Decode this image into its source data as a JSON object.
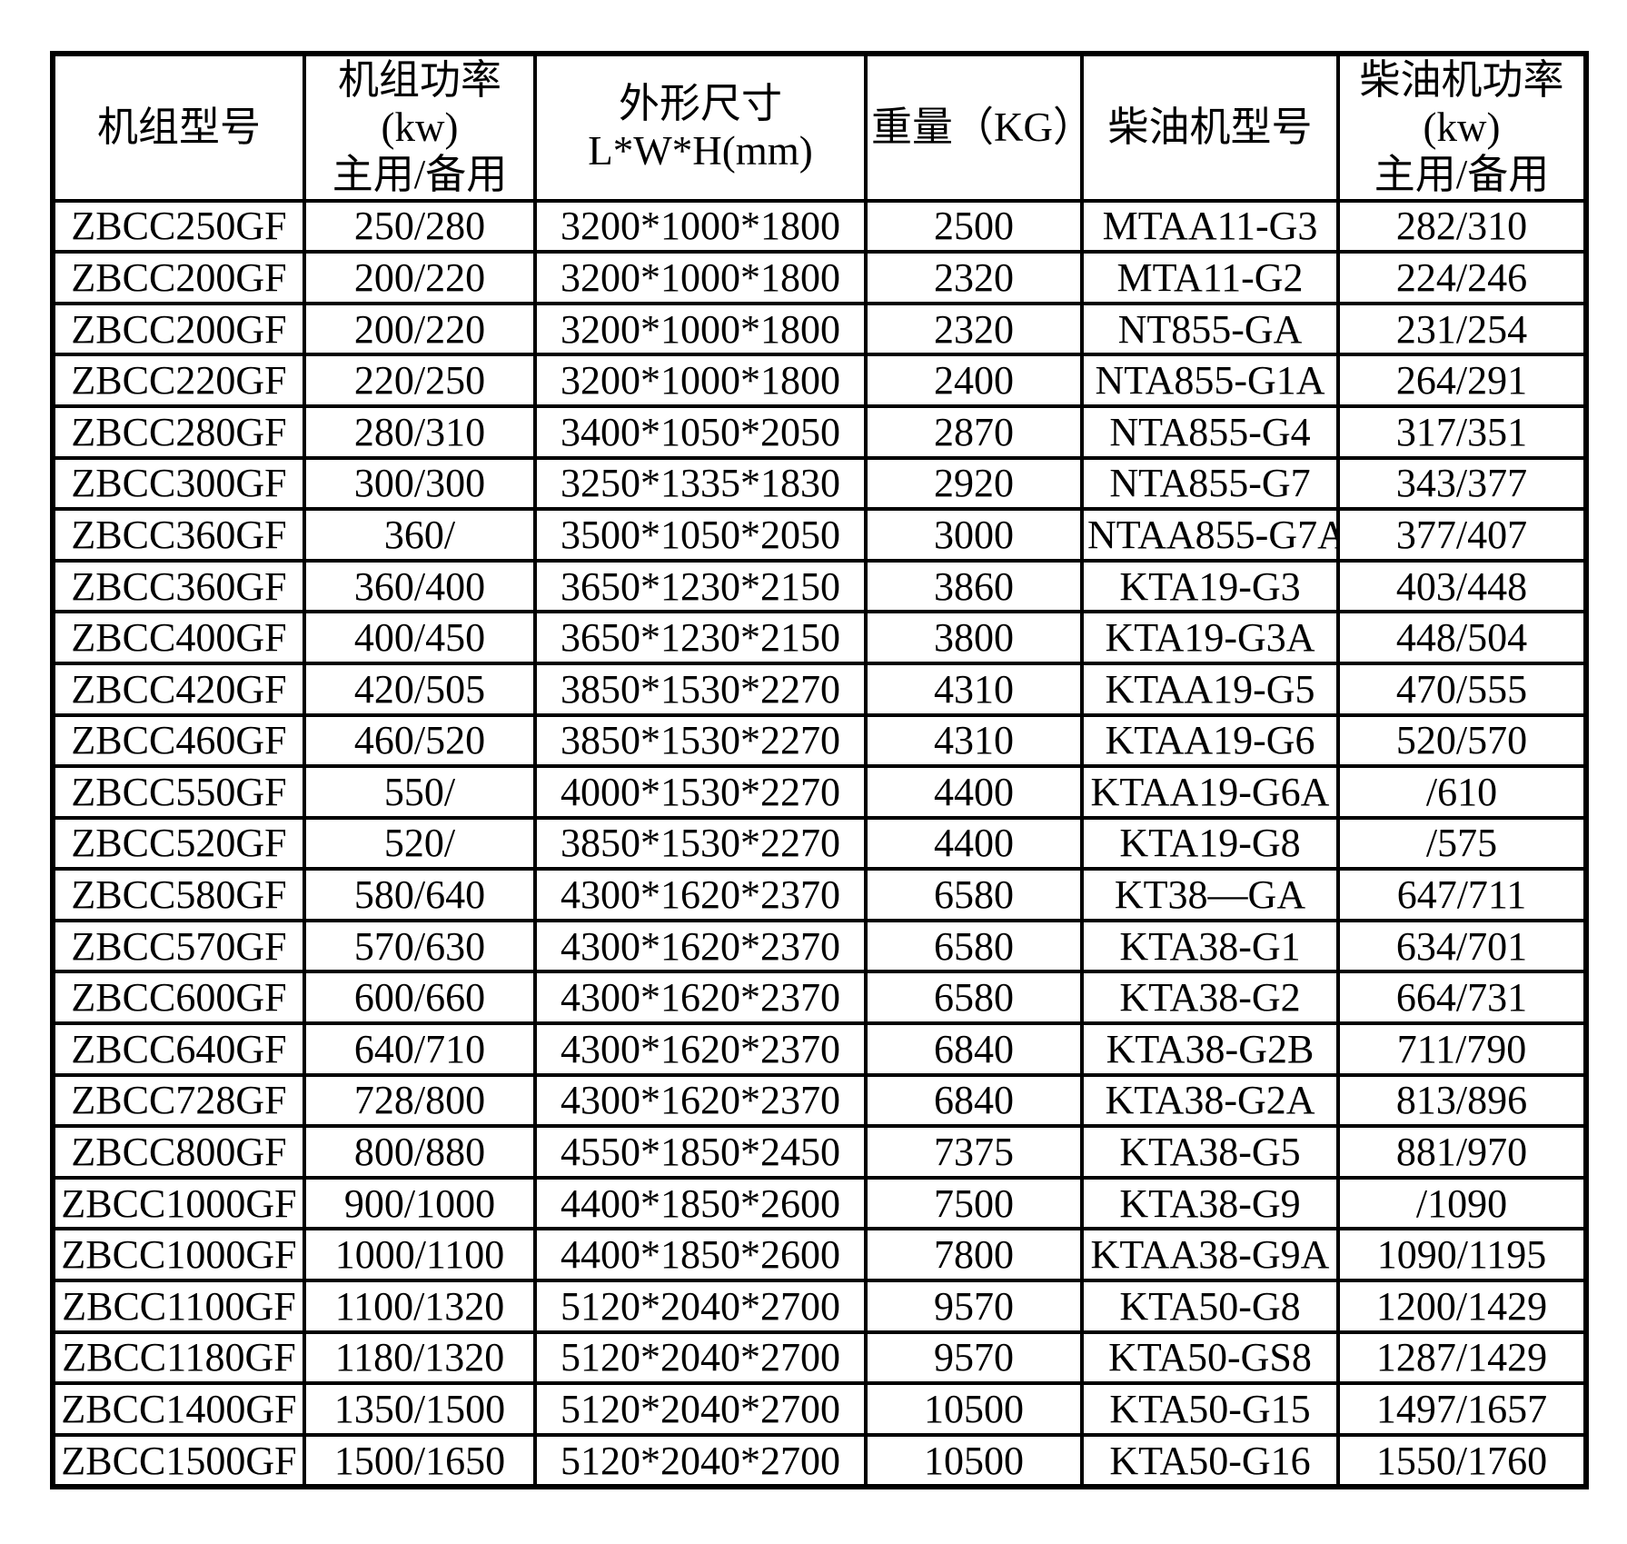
{
  "meta": {
    "background_color": "#ffffff",
    "border_color": "#000000",
    "text_color": "#000000"
  },
  "table": {
    "column_keys": [
      "unit_model",
      "unit_power",
      "dimensions",
      "weight",
      "engine_model",
      "engine_power"
    ],
    "headers": [
      {
        "lines": [
          "机组型号"
        ]
      },
      {
        "lines": [
          "机组功率",
          "(kw)",
          "主用/备用"
        ]
      },
      {
        "lines": [
          "外形尺寸",
          "L*W*H(mm)"
        ]
      },
      {
        "lines": [
          "重量（KG）"
        ]
      },
      {
        "lines": [
          "柴油机型号"
        ]
      },
      {
        "lines": [
          "柴油机功率",
          "(kw)",
          "主用/备用"
        ]
      }
    ],
    "rows": [
      [
        "ZBCC250GF",
        "250/280",
        "3200*1000*1800",
        "2500",
        "MTAA11-G3",
        "282/310"
      ],
      [
        "ZBCC200GF",
        "200/220",
        "3200*1000*1800",
        "2320",
        "MTA11-G2",
        "224/246"
      ],
      [
        "ZBCC200GF",
        "200/220",
        "3200*1000*1800",
        "2320",
        "NT855-GA",
        "231/254"
      ],
      [
        "ZBCC220GF",
        "220/250",
        "3200*1000*1800",
        "2400",
        "NTA855-G1A",
        "264/291"
      ],
      [
        "ZBCC280GF",
        "280/310",
        "3400*1050*2050",
        "2870",
        "NTA855-G4",
        "317/351"
      ],
      [
        "ZBCC300GF",
        "300/300",
        "3250*1335*1830",
        "2920",
        "NTA855-G7",
        "343/377"
      ],
      [
        "ZBCC360GF",
        "360/",
        "3500*1050*2050",
        "3000",
        "NTAA855-G7A",
        "377/407"
      ],
      [
        "ZBCC360GF",
        "360/400",
        "3650*1230*2150",
        "3860",
        "KTA19-G3",
        "403/448"
      ],
      [
        "ZBCC400GF",
        "400/450",
        "3650*1230*2150",
        "3800",
        "KTA19-G3A",
        "448/504"
      ],
      [
        "ZBCC420GF",
        "420/505",
        "3850*1530*2270",
        "4310",
        "KTAA19-G5",
        "470/555"
      ],
      [
        "ZBCC460GF",
        "460/520",
        "3850*1530*2270",
        "4310",
        "KTAA19-G6",
        "520/570"
      ],
      [
        "ZBCC550GF",
        "550/",
        "4000*1530*2270",
        "4400",
        "KTAA19-G6A",
        "/610"
      ],
      [
        "ZBCC520GF",
        "520/",
        "3850*1530*2270",
        "4400",
        "KTA19-G8",
        "/575"
      ],
      [
        "ZBCC580GF",
        "580/640",
        "4300*1620*2370",
        "6580",
        "KT38—GA",
        "647/711"
      ],
      [
        "ZBCC570GF",
        "570/630",
        "4300*1620*2370",
        "6580",
        "KTA38-G1",
        "634/701"
      ],
      [
        "ZBCC600GF",
        "600/660",
        "4300*1620*2370",
        "6580",
        "KTA38-G2",
        "664/731"
      ],
      [
        "ZBCC640GF",
        "640/710",
        "4300*1620*2370",
        "6840",
        "KTA38-G2B",
        "711/790"
      ],
      [
        "ZBCC728GF",
        "728/800",
        "4300*1620*2370",
        "6840",
        "KTA38-G2A",
        "813/896"
      ],
      [
        "ZBCC800GF",
        "800/880",
        "4550*1850*2450",
        "7375",
        "KTA38-G5",
        "881/970"
      ],
      [
        "ZBCC1000GF",
        "900/1000",
        "4400*1850*2600",
        "7500",
        "KTA38-G9",
        "/1090"
      ],
      [
        "ZBCC1000GF",
        "1000/1100",
        "4400*1850*2600",
        "7800",
        "KTAA38-G9A",
        "1090/1195"
      ],
      [
        "ZBCC1100GF",
        "1100/1320",
        "5120*2040*2700",
        "9570",
        "KTA50-G8",
        "1200/1429"
      ],
      [
        "ZBCC1180GF",
        "1180/1320",
        "5120*2040*2700",
        "9570",
        "KTA50-GS8",
        "1287/1429"
      ],
      [
        "ZBCC1400GF",
        "1350/1500",
        "5120*2040*2700",
        "10500",
        "KTA50-G15",
        "1497/1657"
      ],
      [
        "ZBCC1500GF",
        "1500/1650",
        "5120*2040*2700",
        "10500",
        "KTA50-G16",
        "1550/1760"
      ]
    ]
  }
}
